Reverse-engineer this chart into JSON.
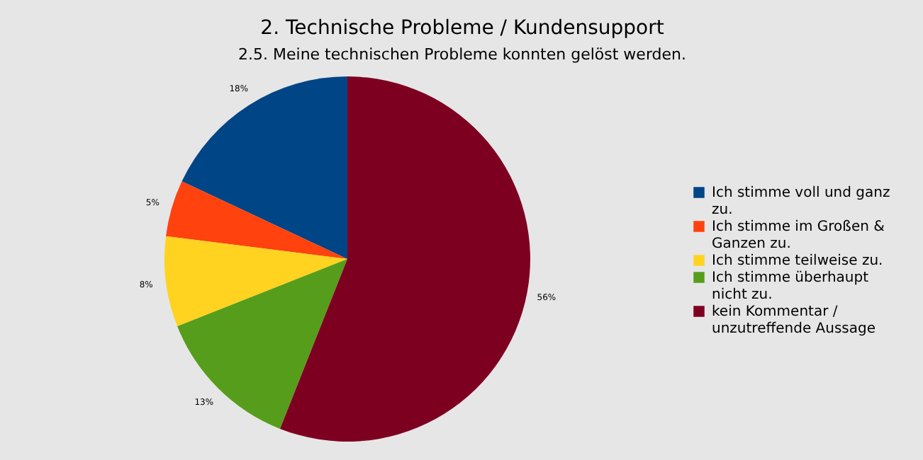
{
  "chart_data": {
    "type": "pie",
    "title": "2. Technische Probleme / Kundensupport",
    "subtitle": "2.5. Meine technischen Probleme konnten gelöst werden.",
    "categories": [
      "Ich stimme voll und ganz zu.",
      "Ich stimme im Großen & Ganzen zu.",
      "Ich stimme teilweise zu.",
      "Ich stimme überhaupt nicht zu.",
      "kein Kommentar / unzutreffende Aussage"
    ],
    "values": [
      18,
      5,
      8,
      13,
      56
    ],
    "value_labels": [
      "18%",
      "5%",
      "8%",
      "13%",
      "56%"
    ],
    "colors": [
      "#004586",
      "#ff420e",
      "#ffd320",
      "#579d1c",
      "#7e0021"
    ],
    "legend": "right"
  }
}
